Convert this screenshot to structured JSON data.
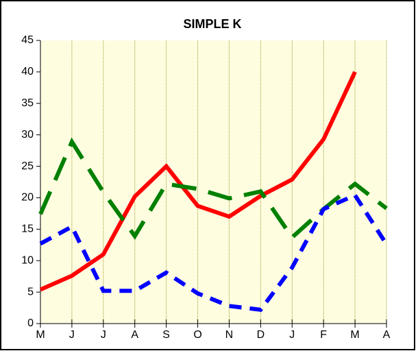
{
  "chart_data": {
    "type": "line",
    "title": "SIMPLE K",
    "categories": [
      "M",
      "J",
      "J",
      "A",
      "S",
      "O",
      "N",
      "D",
      "J",
      "F",
      "M",
      "A"
    ],
    "ylim": [
      0,
      45
    ],
    "yticks": [
      0,
      5,
      10,
      15,
      20,
      25,
      30,
      35,
      40,
      45
    ],
    "grid": true,
    "background": "#fffde0",
    "series": [
      {
        "color": "#ff0000",
        "style": "solid",
        "values": [
          5.4,
          7.6,
          11,
          20.2,
          25,
          18.7,
          17,
          20.3,
          22.9,
          29.3,
          40,
          null
        ]
      },
      {
        "color": "#008000",
        "style": "long-dash",
        "values": [
          17.4,
          28.9,
          20.9,
          13.9,
          22.2,
          21.4,
          19.9,
          21,
          13.7,
          18.2,
          22.2,
          18.3
        ]
      },
      {
        "color": "#0000ff",
        "style": "dash",
        "values": [
          12.7,
          15.4,
          5.2,
          5.2,
          8.1,
          4.8,
          2.8,
          2.2,
          8.9,
          18.2,
          20.4,
          12.6
        ]
      }
    ]
  }
}
